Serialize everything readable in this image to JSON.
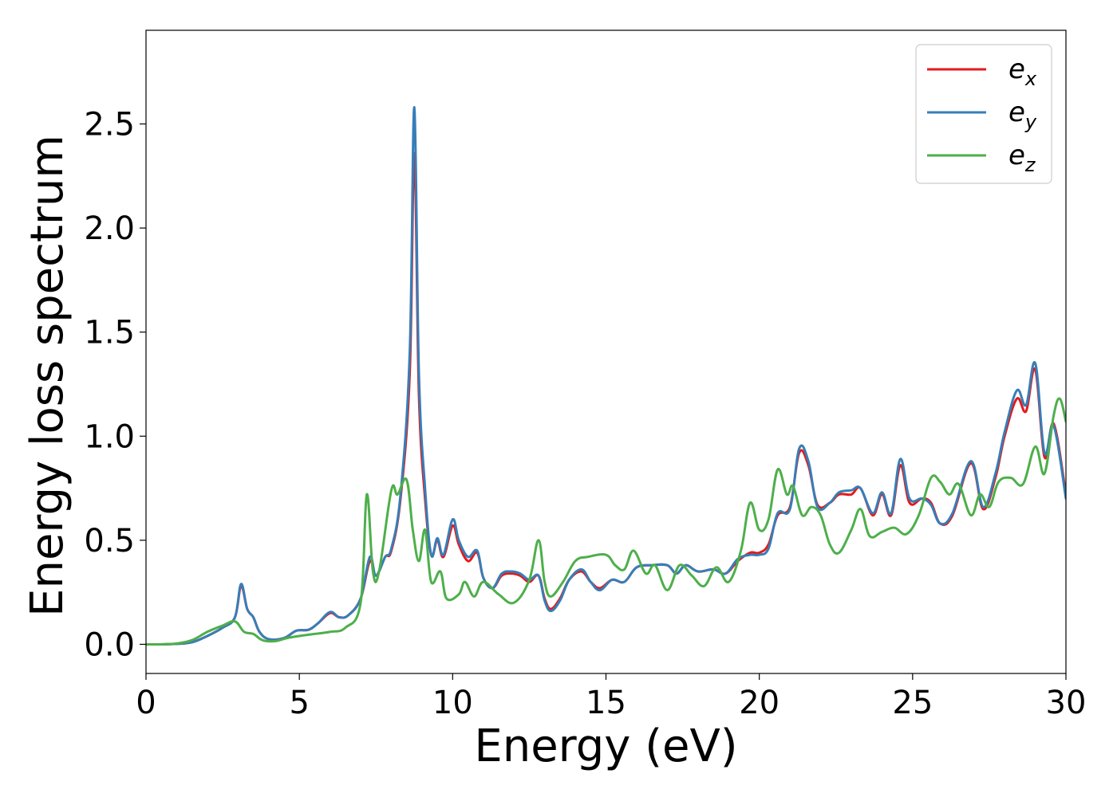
{
  "chart_data": {
    "type": "line",
    "xlabel": "Energy (eV)",
    "ylabel": "Energy loss spectrum",
    "xlim": [
      0,
      30
    ],
    "ylim": [
      -0.14,
      2.95
    ],
    "xticks": [
      0,
      5,
      10,
      15,
      20,
      25,
      30
    ],
    "xtick_labels": [
      "0",
      "5",
      "10",
      "15",
      "20",
      "25",
      "30"
    ],
    "yticks": [
      0.0,
      0.5,
      1.0,
      1.5,
      2.0,
      2.5
    ],
    "ytick_labels": [
      "0.0",
      "0.5",
      "1.0",
      "1.5",
      "2.0",
      "2.5"
    ],
    "grid": false,
    "legend_position": "upper right",
    "series": [
      {
        "name": "e_x",
        "label_base": "e",
        "label_sub": "x",
        "color": "#e41a1c",
        "points": [
          [
            0,
            0
          ],
          [
            0.5,
            0
          ],
          [
            1,
            0.002
          ],
          [
            1.5,
            0.01
          ],
          [
            2,
            0.04
          ],
          [
            2.5,
            0.08
          ],
          [
            2.9,
            0.13
          ],
          [
            3.1,
            0.28
          ],
          [
            3.3,
            0.17
          ],
          [
            3.5,
            0.13
          ],
          [
            3.7,
            0.06
          ],
          [
            4.0,
            0.025
          ],
          [
            4.5,
            0.03
          ],
          [
            4.9,
            0.065
          ],
          [
            5.3,
            0.07
          ],
          [
            5.6,
            0.1
          ],
          [
            6.0,
            0.15
          ],
          [
            6.3,
            0.13
          ],
          [
            6.6,
            0.14
          ],
          [
            7.0,
            0.22
          ],
          [
            7.3,
            0.4
          ],
          [
            7.5,
            0.33
          ],
          [
            7.8,
            0.42
          ],
          [
            8.0,
            0.45
          ],
          [
            8.3,
            0.7
          ],
          [
            8.6,
            1.3
          ],
          [
            8.75,
            2.36
          ],
          [
            8.9,
            1.2
          ],
          [
            9.1,
            0.7
          ],
          [
            9.3,
            0.43
          ],
          [
            9.5,
            0.5
          ],
          [
            9.7,
            0.42
          ],
          [
            10.0,
            0.57
          ],
          [
            10.2,
            0.48
          ],
          [
            10.5,
            0.4
          ],
          [
            10.8,
            0.44
          ],
          [
            11.0,
            0.32
          ],
          [
            11.3,
            0.27
          ],
          [
            11.6,
            0.33
          ],
          [
            11.9,
            0.34
          ],
          [
            12.2,
            0.33
          ],
          [
            12.5,
            0.3
          ],
          [
            12.8,
            0.33
          ],
          [
            13.0,
            0.22
          ],
          [
            13.2,
            0.17
          ],
          [
            13.5,
            0.22
          ],
          [
            13.8,
            0.31
          ],
          [
            14.2,
            0.35
          ],
          [
            14.5,
            0.3
          ],
          [
            14.8,
            0.27
          ],
          [
            15.2,
            0.31
          ],
          [
            15.6,
            0.3
          ],
          [
            16.0,
            0.37
          ],
          [
            16.5,
            0.38
          ],
          [
            17.0,
            0.38
          ],
          [
            17.3,
            0.34
          ],
          [
            17.6,
            0.38
          ],
          [
            18.0,
            0.35
          ],
          [
            18.5,
            0.36
          ],
          [
            18.9,
            0.34
          ],
          [
            19.3,
            0.4
          ],
          [
            19.7,
            0.44
          ],
          [
            20.0,
            0.44
          ],
          [
            20.3,
            0.48
          ],
          [
            20.6,
            0.62
          ],
          [
            21.0,
            0.66
          ],
          [
            21.3,
            0.92
          ],
          [
            21.6,
            0.86
          ],
          [
            21.9,
            0.67
          ],
          [
            22.3,
            0.68
          ],
          [
            22.6,
            0.72
          ],
          [
            23.0,
            0.72
          ],
          [
            23.3,
            0.75
          ],
          [
            23.7,
            0.62
          ],
          [
            24.0,
            0.72
          ],
          [
            24.3,
            0.62
          ],
          [
            24.6,
            0.86
          ],
          [
            24.9,
            0.68
          ],
          [
            25.3,
            0.7
          ],
          [
            25.6,
            0.68
          ],
          [
            25.9,
            0.58
          ],
          [
            26.3,
            0.62
          ],
          [
            26.9,
            0.87
          ],
          [
            27.3,
            0.65
          ],
          [
            27.7,
            0.8
          ],
          [
            28.0,
            1.0
          ],
          [
            28.4,
            1.18
          ],
          [
            28.7,
            1.12
          ],
          [
            29.0,
            1.32
          ],
          [
            29.3,
            0.9
          ],
          [
            29.6,
            1.06
          ],
          [
            30.0,
            0.72
          ]
        ]
      },
      {
        "name": "e_y",
        "label_base": "e",
        "label_sub": "y",
        "color": "#377eb8",
        "points": [
          [
            0,
            0
          ],
          [
            0.5,
            0
          ],
          [
            1,
            0.002
          ],
          [
            1.5,
            0.01
          ],
          [
            2,
            0.04
          ],
          [
            2.5,
            0.08
          ],
          [
            2.9,
            0.13
          ],
          [
            3.1,
            0.29
          ],
          [
            3.3,
            0.17
          ],
          [
            3.5,
            0.13
          ],
          [
            3.7,
            0.06
          ],
          [
            4.0,
            0.025
          ],
          [
            4.5,
            0.03
          ],
          [
            4.9,
            0.065
          ],
          [
            5.3,
            0.07
          ],
          [
            5.6,
            0.1
          ],
          [
            6.0,
            0.155
          ],
          [
            6.3,
            0.13
          ],
          [
            6.6,
            0.14
          ],
          [
            7.0,
            0.22
          ],
          [
            7.3,
            0.42
          ],
          [
            7.5,
            0.33
          ],
          [
            7.8,
            0.42
          ],
          [
            8.0,
            0.46
          ],
          [
            8.3,
            0.72
          ],
          [
            8.6,
            1.4
          ],
          [
            8.75,
            2.58
          ],
          [
            8.9,
            1.3
          ],
          [
            9.1,
            0.75
          ],
          [
            9.3,
            0.43
          ],
          [
            9.5,
            0.51
          ],
          [
            9.7,
            0.43
          ],
          [
            10.0,
            0.6
          ],
          [
            10.2,
            0.5
          ],
          [
            10.5,
            0.42
          ],
          [
            10.8,
            0.45
          ],
          [
            11.0,
            0.32
          ],
          [
            11.3,
            0.27
          ],
          [
            11.6,
            0.34
          ],
          [
            11.9,
            0.35
          ],
          [
            12.2,
            0.34
          ],
          [
            12.5,
            0.31
          ],
          [
            12.8,
            0.33
          ],
          [
            13.0,
            0.21
          ],
          [
            13.2,
            0.16
          ],
          [
            13.5,
            0.21
          ],
          [
            13.8,
            0.31
          ],
          [
            14.2,
            0.36
          ],
          [
            14.5,
            0.3
          ],
          [
            14.8,
            0.26
          ],
          [
            15.2,
            0.31
          ],
          [
            15.6,
            0.3
          ],
          [
            16.0,
            0.37
          ],
          [
            16.5,
            0.38
          ],
          [
            17.0,
            0.38
          ],
          [
            17.3,
            0.34
          ],
          [
            17.6,
            0.38
          ],
          [
            18.0,
            0.35
          ],
          [
            18.5,
            0.36
          ],
          [
            18.9,
            0.34
          ],
          [
            19.3,
            0.41
          ],
          [
            19.7,
            0.43
          ],
          [
            20.0,
            0.43
          ],
          [
            20.3,
            0.46
          ],
          [
            20.6,
            0.63
          ],
          [
            21.0,
            0.65
          ],
          [
            21.3,
            0.94
          ],
          [
            21.6,
            0.88
          ],
          [
            21.9,
            0.66
          ],
          [
            22.3,
            0.68
          ],
          [
            22.6,
            0.73
          ],
          [
            23.0,
            0.74
          ],
          [
            23.3,
            0.75
          ],
          [
            23.7,
            0.63
          ],
          [
            24.0,
            0.73
          ],
          [
            24.3,
            0.63
          ],
          [
            24.6,
            0.89
          ],
          [
            24.9,
            0.7
          ],
          [
            25.3,
            0.7
          ],
          [
            25.6,
            0.67
          ],
          [
            25.9,
            0.58
          ],
          [
            26.3,
            0.63
          ],
          [
            26.9,
            0.88
          ],
          [
            27.3,
            0.66
          ],
          [
            27.7,
            0.82
          ],
          [
            28.0,
            1.02
          ],
          [
            28.4,
            1.22
          ],
          [
            28.7,
            1.15
          ],
          [
            29.0,
            1.35
          ],
          [
            29.3,
            0.92
          ],
          [
            29.6,
            1.05
          ],
          [
            30.0,
            0.7
          ]
        ]
      },
      {
        "name": "e_z",
        "label_base": "e",
        "label_sub": "z",
        "color": "#4daf4a",
        "points": [
          [
            0,
            0
          ],
          [
            0.5,
            0
          ],
          [
            1,
            0.004
          ],
          [
            1.5,
            0.02
          ],
          [
            2,
            0.06
          ],
          [
            2.5,
            0.09
          ],
          [
            2.9,
            0.11
          ],
          [
            3.2,
            0.06
          ],
          [
            3.5,
            0.05
          ],
          [
            3.8,
            0.02
          ],
          [
            4.2,
            0.015
          ],
          [
            4.6,
            0.03
          ],
          [
            5.0,
            0.04
          ],
          [
            5.5,
            0.05
          ],
          [
            6.0,
            0.06
          ],
          [
            6.5,
            0.08
          ],
          [
            7.0,
            0.2
          ],
          [
            7.2,
            0.72
          ],
          [
            7.4,
            0.35
          ],
          [
            7.6,
            0.35
          ],
          [
            8.0,
            0.74
          ],
          [
            8.2,
            0.72
          ],
          [
            8.5,
            0.79
          ],
          [
            8.7,
            0.55
          ],
          [
            8.9,
            0.4
          ],
          [
            9.1,
            0.55
          ],
          [
            9.3,
            0.3
          ],
          [
            9.6,
            0.35
          ],
          [
            9.8,
            0.22
          ],
          [
            10.2,
            0.24
          ],
          [
            10.4,
            0.3
          ],
          [
            10.7,
            0.23
          ],
          [
            11.0,
            0.3
          ],
          [
            11.5,
            0.24
          ],
          [
            12.0,
            0.2
          ],
          [
            12.5,
            0.31
          ],
          [
            12.8,
            0.5
          ],
          [
            13.0,
            0.3
          ],
          [
            13.2,
            0.23
          ],
          [
            13.6,
            0.3
          ],
          [
            14.0,
            0.4
          ],
          [
            14.4,
            0.42
          ],
          [
            15.0,
            0.43
          ],
          [
            15.3,
            0.38
          ],
          [
            15.6,
            0.36
          ],
          [
            15.9,
            0.45
          ],
          [
            16.3,
            0.34
          ],
          [
            16.6,
            0.38
          ],
          [
            17.0,
            0.26
          ],
          [
            17.4,
            0.38
          ],
          [
            17.8,
            0.33
          ],
          [
            18.2,
            0.28
          ],
          [
            18.6,
            0.37
          ],
          [
            19.0,
            0.3
          ],
          [
            19.4,
            0.45
          ],
          [
            19.7,
            0.68
          ],
          [
            20.0,
            0.55
          ],
          [
            20.3,
            0.6
          ],
          [
            20.6,
            0.84
          ],
          [
            20.9,
            0.72
          ],
          [
            21.1,
            0.76
          ],
          [
            21.4,
            0.62
          ],
          [
            21.7,
            0.66
          ],
          [
            22.0,
            0.62
          ],
          [
            22.3,
            0.48
          ],
          [
            22.6,
            0.44
          ],
          [
            23.0,
            0.55
          ],
          [
            23.3,
            0.65
          ],
          [
            23.6,
            0.52
          ],
          [
            24.0,
            0.54
          ],
          [
            24.4,
            0.56
          ],
          [
            24.8,
            0.53
          ],
          [
            25.2,
            0.62
          ],
          [
            25.6,
            0.8
          ],
          [
            25.9,
            0.78
          ],
          [
            26.2,
            0.72
          ],
          [
            26.5,
            0.77
          ],
          [
            26.9,
            0.62
          ],
          [
            27.2,
            0.72
          ],
          [
            27.5,
            0.66
          ],
          [
            27.8,
            0.78
          ],
          [
            28.2,
            0.8
          ],
          [
            28.6,
            0.77
          ],
          [
            29.0,
            0.95
          ],
          [
            29.3,
            0.82
          ],
          [
            29.6,
            1.1
          ],
          [
            29.8,
            1.18
          ],
          [
            30.0,
            1.07
          ]
        ]
      }
    ]
  }
}
